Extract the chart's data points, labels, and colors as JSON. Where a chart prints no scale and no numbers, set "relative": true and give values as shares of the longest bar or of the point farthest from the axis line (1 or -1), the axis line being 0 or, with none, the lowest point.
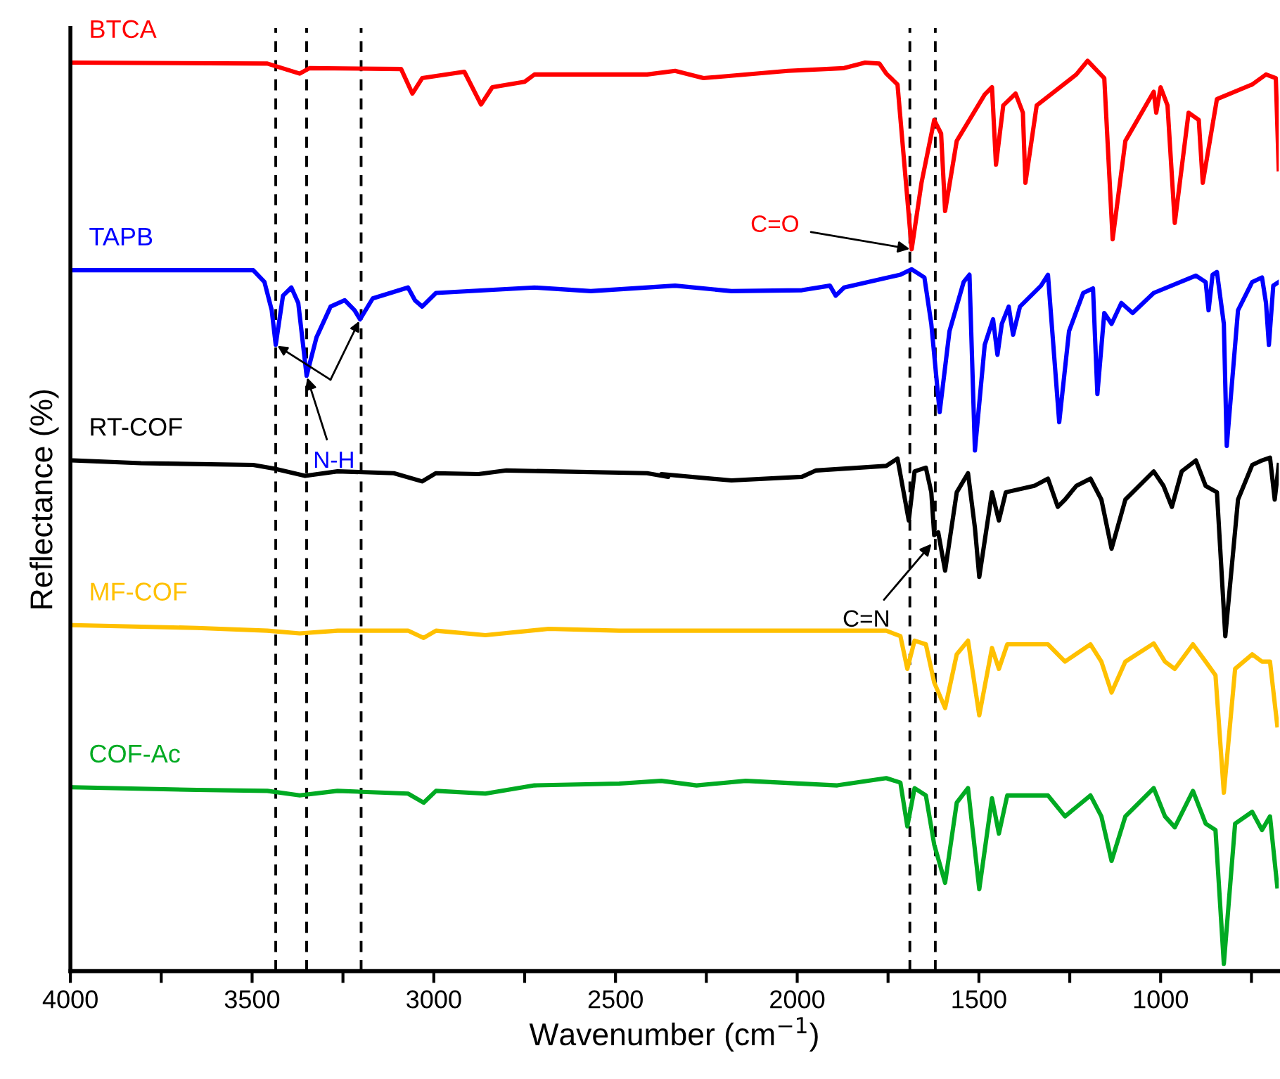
{
  "chart_data": {
    "type": "line",
    "relative": true,
    "xlabel": "Wavenumber (cm$^{−1}$)",
    "ylabel": "Reflectance (%)",
    "xlim": [
      4000,
      675
    ],
    "xticks": [
      4000,
      {
        "value": 3750,
        "label": null
      },
      3500,
      {
        "value": 3250,
        "label": null
      },
      3000,
      {
        "value": 2750,
        "label": null
      },
      2500,
      {
        "value": 2250,
        "label": null
      },
      2000,
      {
        "value": 1750,
        "label": null
      },
      1500,
      {
        "value": 1250,
        "label": null
      },
      1000,
      {
        "value": 750,
        "label": null
      }
    ],
    "tick_labels": "x",
    "grid": false,
    "legend": false,
    "marker": "none",
    "line_style": "solid",
    "series": [
      {
        "name": "BTCA",
        "color": "#ff0000",
        "x": [
          3992,
          3458,
          3369,
          3342,
          3090,
          3059,
          3032,
          2916,
          2870,
          2839,
          2750,
          2723,
          2413,
          2336,
          2258,
          2026,
          1871,
          1813,
          1774,
          1755,
          1724,
          1685,
          1658,
          1623,
          1604,
          1593,
          1561,
          1484,
          1464,
          1453,
          1433,
          1399,
          1379,
          1372,
          1341,
          1232,
          1201,
          1155,
          1132,
          1097,
          1019,
          1012,
          1000,
          981,
          961,
          923,
          895,
          884,
          845,
          748,
          710,
          683,
          675
        ],
        "values": [
          0.998,
          0.997,
          0.986,
          0.992,
          0.991,
          0.964,
          0.981,
          0.988,
          0.952,
          0.971,
          0.977,
          0.985,
          0.985,
          0.989,
          0.981,
          0.989,
          0.992,
          0.998,
          0.997,
          0.986,
          0.974,
          0.793,
          0.866,
          0.935,
          0.92,
          0.835,
          0.912,
          0.963,
          0.971,
          0.886,
          0.951,
          0.964,
          0.943,
          0.866,
          0.951,
          0.985,
          1.0,
          0.981,
          0.804,
          0.912,
          0.966,
          0.943,
          0.971,
          0.951,
          0.822,
          0.943,
          0.935,
          0.866,
          0.958,
          0.974,
          0.985,
          0.981,
          0.881
        ]
      },
      {
        "name": "TAPB",
        "color": "#0000ff",
        "x": [
          3992,
          3497,
          3466,
          3446,
          3435,
          3415,
          3392,
          3373,
          3350,
          3323,
          3284,
          3245,
          3218,
          3203,
          3168,
          3071,
          3052,
          3032,
          2994,
          2723,
          2568,
          2336,
          2181,
          1987,
          1910,
          1894,
          1871,
          1716,
          1685,
          1650,
          1631,
          1608,
          1581,
          1542,
          1526,
          1511,
          1484,
          1461,
          1449,
          1437,
          1418,
          1406,
          1387,
          1329,
          1310,
          1279,
          1252,
          1213,
          1186,
          1174,
          1155,
          1135,
          1108,
          1077,
          1019,
          903,
          876,
          868,
          857,
          845,
          826,
          818,
          787,
          748,
          721,
          710,
          702,
          690,
          675
        ],
        "values": [
          0.77,
          0.77,
          0.757,
          0.726,
          0.688,
          0.742,
          0.751,
          0.734,
          0.654,
          0.696,
          0.73,
          0.737,
          0.726,
          0.716,
          0.739,
          0.751,
          0.737,
          0.73,
          0.745,
          0.751,
          0.747,
          0.753,
          0.747,
          0.748,
          0.753,
          0.742,
          0.751,
          0.765,
          0.771,
          0.762,
          0.711,
          0.614,
          0.703,
          0.757,
          0.765,
          0.572,
          0.688,
          0.716,
          0.677,
          0.711,
          0.73,
          0.699,
          0.73,
          0.753,
          0.765,
          0.603,
          0.703,
          0.745,
          0.75,
          0.634,
          0.723,
          0.711,
          0.734,
          0.723,
          0.745,
          0.764,
          0.757,
          0.726,
          0.765,
          0.768,
          0.711,
          0.577,
          0.726,
          0.757,
          0.762,
          0.734,
          0.688,
          0.753,
          0.757
        ]
      },
      {
        "name": "RT-COF",
        "color": "#000000",
        "x": [
          3992,
          3806,
          3497,
          3439,
          3354,
          3265,
          3110,
          3032,
          2994,
          2877,
          2800,
          2413,
          2355,
          2374,
          2181,
          1987,
          1948,
          1755,
          1724,
          1693,
          1677,
          1646,
          1631,
          1623,
          1612,
          1593,
          1561,
          1530,
          1511,
          1499,
          1464,
          1445,
          1426,
          1348,
          1310,
          1283,
          1263,
          1232,
          1193,
          1163,
          1135,
          1097,
          1019,
          992,
          969,
          942,
          903,
          876,
          845,
          822,
          787,
          748,
          721,
          699,
          686,
          675
        ],
        "values": [
          0.561,
          0.558,
          0.556,
          0.552,
          0.544,
          0.549,
          0.547,
          0.538,
          0.547,
          0.546,
          0.55,
          0.547,
          0.543,
          0.546,
          0.539,
          0.543,
          0.55,
          0.555,
          0.563,
          0.495,
          0.549,
          0.553,
          0.526,
          0.479,
          0.482,
          0.44,
          0.526,
          0.547,
          0.487,
          0.433,
          0.526,
          0.495,
          0.526,
          0.533,
          0.541,
          0.51,
          0.518,
          0.533,
          0.541,
          0.518,
          0.464,
          0.518,
          0.549,
          0.533,
          0.51,
          0.549,
          0.561,
          0.533,
          0.526,
          0.368,
          0.518,
          0.556,
          0.561,
          0.564,
          0.518,
          0.556
        ]
      },
      {
        "name": "MF-COF",
        "color": "#ffc000",
        "x": [
          3992,
          3652,
          3458,
          3369,
          3265,
          3071,
          3028,
          2994,
          2858,
          2684,
          2490,
          2336,
          2374,
          2026,
          1755,
          1716,
          1697,
          1677,
          1646,
          1623,
          1593,
          1561,
          1530,
          1499,
          1464,
          1445,
          1422,
          1310,
          1263,
          1193,
          1163,
          1135,
          1097,
          1019,
          988,
          961,
          911,
          876,
          849,
          826,
          795,
          748,
          721,
          699,
          679
        ],
        "values": [
          0.38,
          0.377,
          0.374,
          0.371,
          0.374,
          0.374,
          0.366,
          0.374,
          0.369,
          0.376,
          0.374,
          0.374,
          0.374,
          0.374,
          0.374,
          0.368,
          0.332,
          0.363,
          0.359,
          0.317,
          0.289,
          0.348,
          0.363,
          0.281,
          0.355,
          0.332,
          0.359,
          0.359,
          0.34,
          0.359,
          0.34,
          0.306,
          0.34,
          0.36,
          0.34,
          0.332,
          0.359,
          0.34,
          0.325,
          0.196,
          0.332,
          0.348,
          0.34,
          0.34,
          0.27
        ]
      },
      {
        "name": "COF-Ac",
        "color": "#00aa22",
        "x": [
          3992,
          3652,
          3458,
          3369,
          3265,
          3071,
          3028,
          2994,
          2858,
          2723,
          2490,
          2374,
          2277,
          2142,
          1890,
          1755,
          1716,
          1697,
          1677,
          1646,
          1623,
          1593,
          1561,
          1530,
          1499,
          1464,
          1445,
          1422,
          1310,
          1263,
          1193,
          1163,
          1135,
          1097,
          1019,
          988,
          961,
          911,
          876,
          849,
          826,
          795,
          748,
          721,
          699,
          679
        ],
        "values": [
          0.202,
          0.199,
          0.198,
          0.193,
          0.198,
          0.195,
          0.185,
          0.198,
          0.195,
          0.204,
          0.206,
          0.209,
          0.204,
          0.209,
          0.204,
          0.212,
          0.207,
          0.159,
          0.201,
          0.193,
          0.139,
          0.097,
          0.185,
          0.201,
          0.09,
          0.19,
          0.151,
          0.193,
          0.193,
          0.17,
          0.193,
          0.17,
          0.121,
          0.17,
          0.201,
          0.17,
          0.158,
          0.198,
          0.162,
          0.155,
          0.008,
          0.162,
          0.175,
          0.155,
          0.17,
          0.093
        ]
      }
    ],
    "ref_lines": [
      {
        "axis": "x",
        "value": 3435,
        "color": "#000000",
        "line_style": "dashed"
      },
      {
        "axis": "x",
        "value": 3350,
        "color": "#000000",
        "line_style": "dashed"
      },
      {
        "axis": "x",
        "value": 3200,
        "color": "#000000",
        "line_style": "dashed"
      },
      {
        "axis": "x",
        "value": 1690,
        "color": "#000000",
        "line_style": "dashed"
      },
      {
        "axis": "x",
        "value": 1620,
        "color": "#000000",
        "line_style": "dashed"
      }
    ],
    "annotations": [
      {
        "text": "C=O",
        "x": 1685,
        "y": 0.793
      },
      {
        "text": "N-H",
        "x": 3350,
        "y": 0.654
      },
      {
        "text": "C=N",
        "x": 1627,
        "y": 0.471
      }
    ]
  }
}
